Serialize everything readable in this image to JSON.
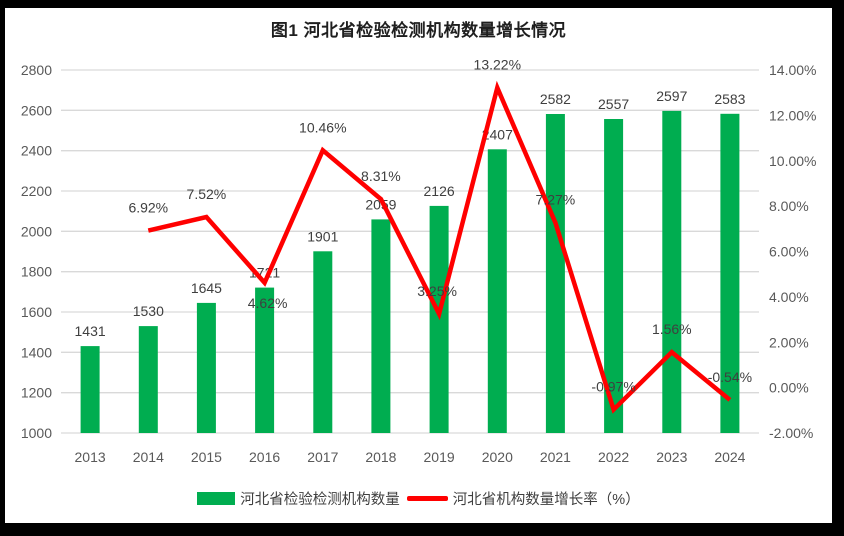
{
  "title": "图1 河北省检验检测机构数量增长情况",
  "chart_data": {
    "type": "combo",
    "title": "图1 河北省检验检测机构数量增长情况",
    "categories": [
      "2013",
      "2014",
      "2015",
      "2016",
      "2017",
      "2018",
      "2019",
      "2020",
      "2021",
      "2022",
      "2023",
      "2024"
    ],
    "series": [
      {
        "name": "河北省检验检测机构数量",
        "chart": "bar",
        "axis": "left",
        "color": "#00AD50",
        "values": [
          1431,
          1530,
          1645,
          1721,
          1901,
          2059,
          2126,
          2407,
          2582,
          2557,
          2597,
          2583
        ],
        "labels": [
          "1431",
          "1530",
          "1645",
          "1721",
          "1901",
          "2059",
          "2126",
          "2407",
          "2582",
          "2557",
          "2597",
          "2583"
        ]
      },
      {
        "name": "河北省机构数量增长率（%）",
        "chart": "line",
        "axis": "right",
        "color": "#FF0000",
        "values": [
          null,
          6.92,
          7.52,
          4.62,
          10.46,
          8.31,
          3.25,
          13.22,
          7.27,
          -0.97,
          1.56,
          -0.54
        ],
        "labels": [
          "",
          "6.92%",
          "7.52%",
          "4.62%",
          "10.46%",
          "8.31%",
          "3.25%",
          "13.22%",
          "7.27%",
          "-0.97%",
          "1.56%",
          "-0.54%"
        ]
      }
    ],
    "left_axis": {
      "min": 1000,
      "max": 2800,
      "step": 200,
      "tick_labels": [
        "2800",
        "2600",
        "2400",
        "2200",
        "2000",
        "1800",
        "1600",
        "1400",
        "1200",
        "1000"
      ]
    },
    "right_axis": {
      "min": -2,
      "max": 14,
      "step": 2,
      "tick_labels": [
        "14.00%",
        "12.00%",
        "10.00%",
        "8.00%",
        "6.00%",
        "4.00%",
        "2.00%",
        "0.00%",
        "-2.00%"
      ]
    },
    "grid": true,
    "gridline_color": "#D9D9D9",
    "axis_text_color": "#595959",
    "data_label_color": "#3f3f3f",
    "legend_position": "bottom"
  }
}
